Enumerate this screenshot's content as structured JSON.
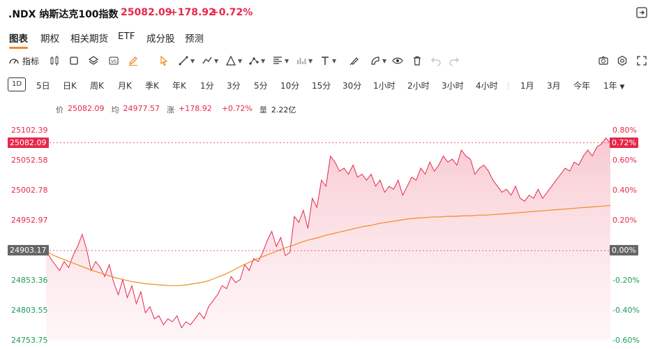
{
  "header": {
    "title": ".NDX 纳斯达克100指数",
    "price": "25082.09",
    "change": "+178.92",
    "change_pct": "+0.72%"
  },
  "tabs": [
    "图表",
    "期权",
    "相关期货",
    "ETF",
    "成分股",
    "预测"
  ],
  "toolbar": {
    "indicator_label": "指标",
    "icons": [
      "candles-icon",
      "rectangle-icon",
      "layers-icon",
      "vs-icon",
      "pen-icon",
      "cursor-icon",
      "line-icon",
      "path-icon",
      "ruler-icon",
      "nodes-icon",
      "fib-icon",
      "chart-icon",
      "text-icon",
      "brush-icon",
      "fill-icon",
      "eye-icon",
      "trash-icon",
      "undo-icon",
      "redo-icon",
      "camera-icon",
      "settings-icon",
      "fullscreen-icon"
    ]
  },
  "periods": {
    "selected": "1D",
    "items": [
      "5日",
      "日K",
      "周K",
      "月K",
      "季K",
      "年K",
      "1分",
      "3分",
      "5分",
      "10分",
      "15分",
      "30分",
      "1小时",
      "2小时",
      "3小时",
      "4小时",
      "1月",
      "3月",
      "今年",
      "1年"
    ]
  },
  "legend": {
    "price_label": "价",
    "price": "25082.09",
    "avg_label": "均",
    "avg": "24977.57",
    "change_label": "涨",
    "change": "+178.92",
    "change_pct": "+0.72%",
    "volume_label": "量",
    "volume": "2.22亿"
  },
  "colors": {
    "up": "#e6284b",
    "down": "#1a9c5a",
    "avg_line": "#f08a24",
    "accent": "#f08a24"
  },
  "chart_data": {
    "type": "area",
    "ylim": [
      24753.75,
      25102.39
    ],
    "prev_close": 24903.17,
    "current": 25082.09,
    "y_ticks_left": [
      "25102.39",
      "25052.58",
      "25002.78",
      "24952.97",
      "24853.36",
      "24803.55",
      "24753.75"
    ],
    "y_ticks_right": [
      "0.80%",
      "0.60%",
      "0.40%",
      "0.20%",
      "0.00%",
      "-0.20%",
      "-0.40%",
      "-0.60%"
    ],
    "current_label": "25082.09",
    "current_pct_label": "0.72%",
    "prev_close_label": "24903.17",
    "prev_close_pct_label": "0.00%",
    "series": [
      {
        "values": [
          24905,
          24890,
          24880,
          24870,
          24885,
          24875,
          24895,
          24910,
          24930,
          24905,
          24870,
          24885,
          24875,
          24860,
          24880,
          24850,
          24830,
          24855,
          24825,
          24845,
          24815,
          24835,
          24800,
          24810,
          24790,
          24795,
          24780,
          24790,
          24785,
          24795,
          24775,
          24785,
          24780,
          24790,
          24800,
          24790,
          24810,
          24820,
          24830,
          24845,
          24840,
          24860,
          24850,
          24855,
          24880,
          24870,
          24890,
          24885,
          24900,
          24920,
          24935,
          24910,
          24925,
          24895,
          24900,
          24960,
          24950,
          24970,
          24940,
          24990,
          24975,
          25020,
          25010,
          25060,
          25050,
          25035,
          25040,
          25030,
          25045,
          25025,
          25030,
          25020,
          25030,
          25010,
          25020,
          25000,
          25010,
          25005,
          25020,
          24995,
          25010,
          25025,
          25020,
          25040,
          25030,
          25050,
          25035,
          25045,
          25060,
          25050,
          25055,
          25045,
          25070,
          25060,
          25055,
          25030,
          25040,
          25045,
          25035,
          25020,
          25010,
          25000,
          25005,
          24995,
          25010,
          24990,
          24985,
          24995,
          24990,
          25005,
          24990,
          25000,
          25010,
          25020,
          25030,
          25040,
          25035,
          25050,
          25045,
          25060,
          25070,
          25060,
          25075,
          25080,
          25090,
          25082
        ],
        "avg": [
          24903,
          24895,
          24890,
          24885,
          24880,
          24875,
          24870,
          24866,
          24862,
          24858,
          24855,
          24852,
          24850,
          24848,
          24847,
          24846,
          24845,
          24845,
          24846,
          24848,
          24850,
          24853,
          24858,
          24863,
          24869,
          24876,
          24882,
          24888,
          24893,
          24898,
          24903,
          24908,
          24912,
          24917,
          24921,
          24924,
          24928,
          24931,
          24934,
          24937,
          24940,
          24943,
          24945,
          24948,
          24950,
          24952,
          24954,
          24956,
          24957,
          24958,
          24959,
          24959,
          24960,
          24960,
          24961,
          24961,
          24962,
          24962,
          24963,
          24964,
          24965,
          24966,
          24967,
          24968,
          24969,
          24970,
          24971,
          24972,
          24973,
          24974,
          24975,
          24976,
          24977,
          24978
        ]
      }
    ]
  }
}
